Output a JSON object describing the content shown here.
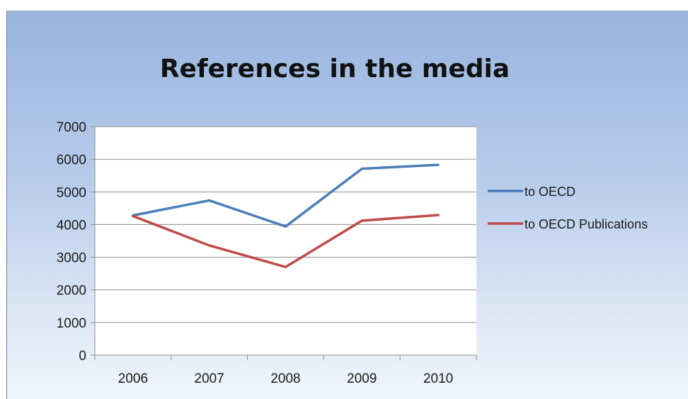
{
  "chart_data": {
    "type": "line",
    "title": "References in the media",
    "xlabel": "",
    "ylabel": "",
    "categories": [
      "2006",
      "2007",
      "2008",
      "2009",
      "2010"
    ],
    "ylim": [
      0,
      7000
    ],
    "yticks": [
      0,
      1000,
      2000,
      3000,
      4000,
      5000,
      6000,
      7000
    ],
    "grid": true,
    "legend_position": "right",
    "series": [
      {
        "name": "to OECD",
        "color": "#4a7ebb",
        "values": [
          4280,
          4740,
          3940,
          5710,
          5830
        ]
      },
      {
        "name": "to OECD Publications",
        "color": "#be4b48",
        "values": [
          4260,
          3360,
          2700,
          4120,
          4290
        ]
      }
    ]
  }
}
